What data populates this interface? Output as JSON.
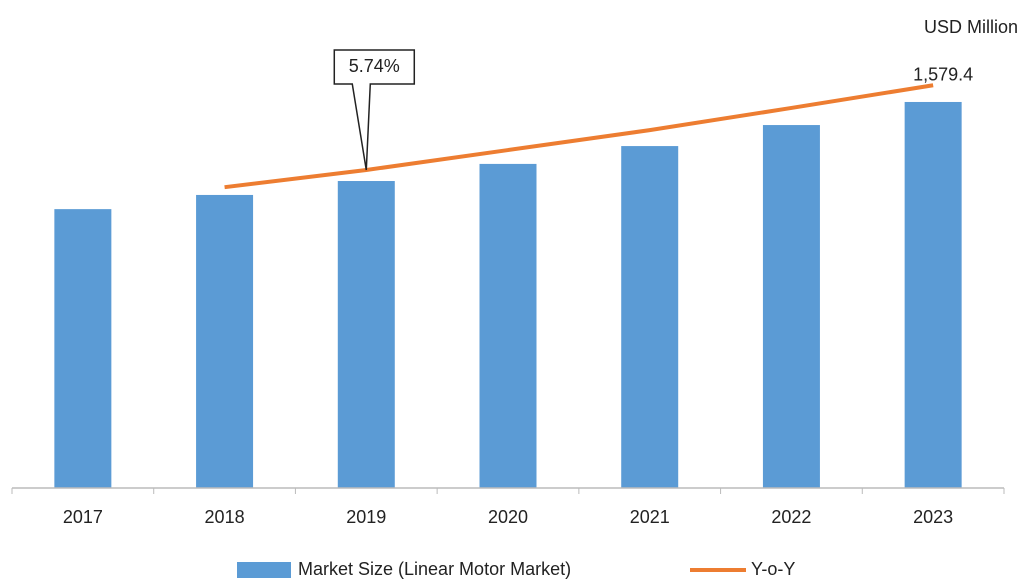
{
  "chart_data": {
    "type": "bar",
    "annotation": "USD Million",
    "categories": [
      "2017",
      "2018",
      "2019",
      "2020",
      "2021",
      "2022",
      "2023"
    ],
    "ylim": [
      0,
      1700
    ],
    "y2lim": [
      0,
      7.5
    ],
    "series": [
      {
        "name": "Market Size (Linear Motor Market)",
        "type": "bar",
        "color": "#5b9bd5",
        "values": [
          1141,
          1199,
          1256,
          1326,
          1399,
          1485,
          1579.4
        ],
        "value_labels": [
          null,
          null,
          null,
          null,
          null,
          null,
          "1,579.4"
        ]
      },
      {
        "name": "Y-o-Y",
        "type": "line",
        "axis": "y2",
        "color": "#ed7d31",
        "values": [
          null,
          5.43,
          5.74,
          6.1,
          6.46,
          6.86,
          7.27
        ],
        "value_labels": [
          null,
          null,
          "5.74%",
          null,
          null,
          null,
          null
        ]
      }
    ]
  }
}
